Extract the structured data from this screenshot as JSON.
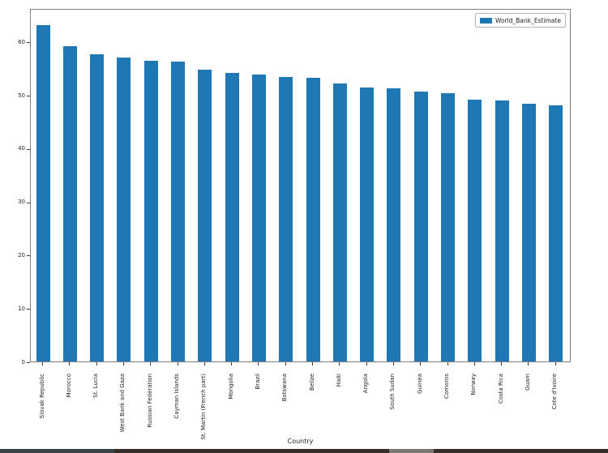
{
  "chart_data": {
    "type": "bar",
    "title": "",
    "xlabel": "Country",
    "ylabel": "",
    "legend": {
      "position": "upper right",
      "entries": [
        "World_Bank_Estimate"
      ]
    },
    "bar_color": "#1f77b4",
    "grid": false,
    "categories": [
      "Slovak Republic",
      "Morocco",
      "St. Lucia",
      "West Bank and Gaza",
      "Russian Federation",
      "Cayman Islands",
      "St. Martin (French part)",
      "Mongolia",
      "Brazil",
      "Botswana",
      "Belize",
      "Haiti",
      "Angola",
      "South Sudan",
      "Guinea",
      "Comoros",
      "Norway",
      "Costa Rica",
      "Guam",
      "Cote d'Ivoire"
    ],
    "values": [
      63.1,
      59.2,
      57.6,
      57.1,
      56.4,
      56.2,
      54.7,
      54.2,
      53.9,
      53.4,
      53.3,
      52.1,
      51.4,
      51.2,
      50.7,
      50.3,
      49.2,
      48.9,
      48.3,
      48.0
    ],
    "yticks": [
      0,
      10,
      20,
      30,
      40,
      50,
      60
    ],
    "ylim": [
      0,
      66.3
    ]
  },
  "taskbar": {
    "segments": [
      {
        "name": "taskbar-segment-slate",
        "color": "#3b424a"
      },
      {
        "name": "taskbar-segment-brown-left",
        "color": "#362f27"
      },
      {
        "name": "taskbar-segment-gray",
        "color": "#7c766f"
      },
      {
        "name": "taskbar-segment-brown-right",
        "color": "#362f27"
      }
    ]
  }
}
